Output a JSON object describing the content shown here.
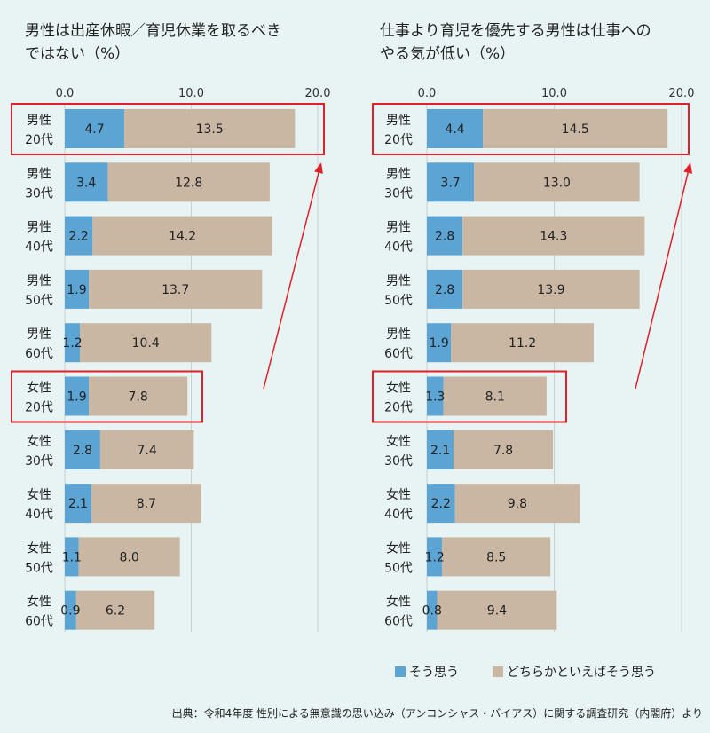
{
  "colors": {
    "background": "#e8f3f3",
    "series1": "#5ba4d4",
    "series2": "#c9b7a4",
    "highlight": "#e0202a",
    "gridline": "#c8d2d2"
  },
  "legend": {
    "item1": "そう思う",
    "item2": "どちらかといえばそう思う"
  },
  "source": "出典：令和4年度 性別による無意識の思い込み（アンコンシャス・バイアス）に関する調査研究（内閣府）より",
  "chart_data": [
    {
      "type": "bar",
      "orientation": "horizontal",
      "stacked": true,
      "title_lines": [
        "男性は出産休暇／育児休業を取るべき",
        "ではない（%）"
      ],
      "xlim": [
        0,
        20
      ],
      "xticks": [
        "0.0",
        "10.0",
        "20.0"
      ],
      "grid": true,
      "categories": [
        [
          "男性",
          "20代"
        ],
        [
          "男性",
          "30代"
        ],
        [
          "男性",
          "40代"
        ],
        [
          "男性",
          "50代"
        ],
        [
          "男性",
          "60代"
        ],
        [
          "女性",
          "20代"
        ],
        [
          "女性",
          "30代"
        ],
        [
          "女性",
          "40代"
        ],
        [
          "女性",
          "50代"
        ],
        [
          "女性",
          "60代"
        ]
      ],
      "series": [
        {
          "name": "そう思う",
          "values": [
            4.7,
            3.4,
            2.2,
            1.9,
            1.2,
            1.9,
            2.8,
            2.1,
            1.1,
            0.9
          ]
        },
        {
          "name": "どちらかといえばそう思う",
          "values": [
            13.5,
            12.8,
            14.2,
            13.7,
            10.4,
            7.8,
            7.4,
            8.7,
            8.0,
            6.2
          ]
        }
      ],
      "highlighted_categories": [
        0,
        5
      ],
      "legend_position": "bottom-right"
    },
    {
      "type": "bar",
      "orientation": "horizontal",
      "stacked": true,
      "title_lines": [
        "仕事より育児を優先する男性は仕事への",
        "やる気が低い（%）"
      ],
      "xlim": [
        0,
        20
      ],
      "xticks": [
        "0.0",
        "10.0",
        "20.0"
      ],
      "grid": true,
      "categories": [
        [
          "男性",
          "20代"
        ],
        [
          "男性",
          "30代"
        ],
        [
          "男性",
          "40代"
        ],
        [
          "男性",
          "50代"
        ],
        [
          "男性",
          "60代"
        ],
        [
          "女性",
          "20代"
        ],
        [
          "女性",
          "30代"
        ],
        [
          "女性",
          "40代"
        ],
        [
          "女性",
          "50代"
        ],
        [
          "女性",
          "60代"
        ]
      ],
      "series": [
        {
          "name": "そう思う",
          "values": [
            4.4,
            3.7,
            2.8,
            2.8,
            1.9,
            1.3,
            2.1,
            2.2,
            1.2,
            0.8
          ]
        },
        {
          "name": "どちらかといえばそう思う",
          "values": [
            14.5,
            13.0,
            14.3,
            13.9,
            11.2,
            8.1,
            7.8,
            9.8,
            8.5,
            9.4
          ]
        }
      ],
      "highlighted_categories": [
        0,
        5
      ],
      "legend_position": "bottom-right"
    }
  ]
}
